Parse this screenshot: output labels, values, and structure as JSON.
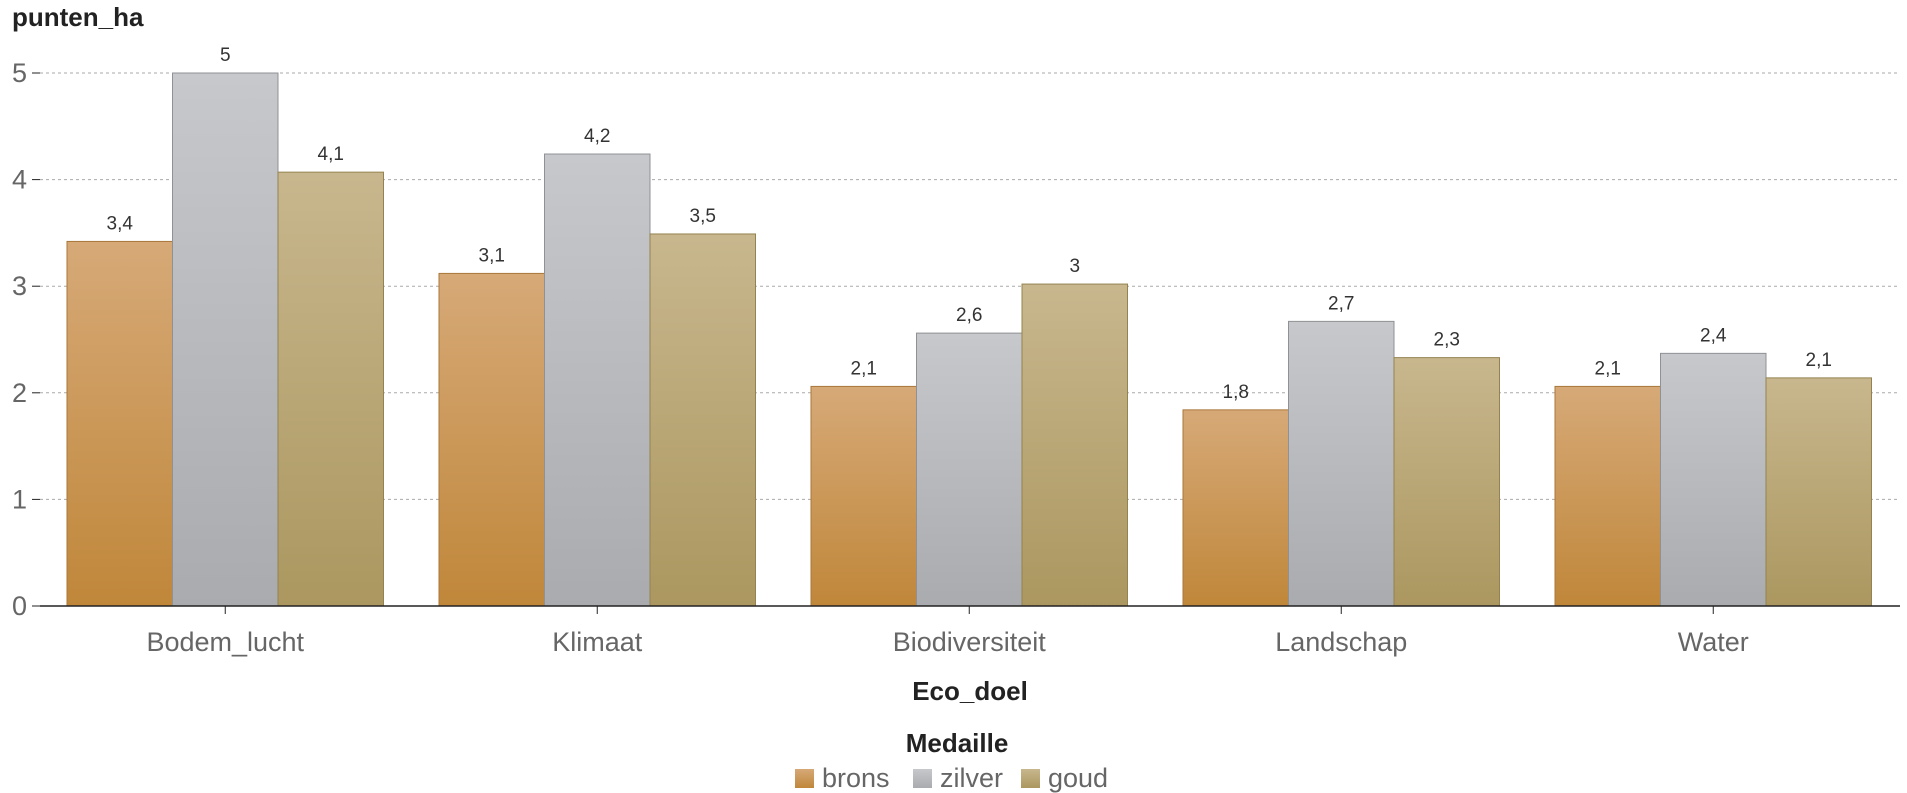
{
  "chart_data": {
    "type": "bar",
    "ylabel": "punten_ha",
    "xlabel": "Eco_doel",
    "categories": [
      "Bodem_lucht",
      "Klimaat",
      "Biodiversiteit",
      "Landschap",
      "Water"
    ],
    "series": [
      {
        "name": "brons",
        "values": [
          3.42,
          3.12,
          2.06,
          1.84,
          2.06
        ],
        "labels": [
          "3,4",
          "3,1",
          "2,1",
          "1,8",
          "2,1"
        ],
        "colors": [
          "#d6a977",
          "#c0873a"
        ],
        "stroke": "#a8773a"
      },
      {
        "name": "zilver",
        "values": [
          5.0,
          4.24,
          2.56,
          2.67,
          2.37
        ],
        "labels": [
          "5",
          "4,2",
          "2,6",
          "2,7",
          "2,4"
        ],
        "colors": [
          "#c6c8cc",
          "#a9abaf"
        ],
        "stroke": "#8f9195"
      },
      {
        "name": "goud",
        "values": [
          4.07,
          3.49,
          3.02,
          2.33,
          2.14
        ],
        "labels": [
          "4,1",
          "3,5",
          "3",
          "2,3",
          "2,1"
        ],
        "colors": [
          "#c8b78e",
          "#ab975f"
        ],
        "stroke": "#94834f"
      }
    ],
    "yticks": [
      "0",
      "1",
      "2",
      "3",
      "4",
      "5"
    ],
    "ylim": [
      0,
      5.4
    ],
    "grid": true,
    "legend": {
      "title": "Medaille",
      "placement": "bottom-center"
    }
  }
}
